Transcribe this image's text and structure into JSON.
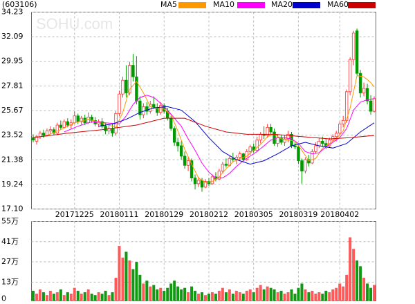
{
  "chart_data": {
    "type": "candlestick",
    "title": "(603106)",
    "watermark": "SOHU.com",
    "categories": [
      null,
      null,
      null,
      null,
      null,
      null,
      null,
      null,
      null,
      null,
      null,
      null,
      "20171225",
      null,
      null,
      null,
      null,
      null,
      null,
      null,
      null,
      null,
      null,
      null,
      null,
      "20180111",
      null,
      null,
      null,
      null,
      null,
      null,
      null,
      null,
      null,
      null,
      null,
      null,
      "20180129",
      null,
      null,
      null,
      null,
      null,
      null,
      null,
      null,
      null,
      null,
      null,
      null,
      "20180212",
      null,
      null,
      null,
      null,
      null,
      null,
      null,
      null,
      null,
      null,
      null,
      null,
      "20180305",
      null,
      null,
      null,
      null,
      null,
      null,
      null,
      null,
      null,
      null,
      null,
      null,
      "20180319",
      null,
      null,
      null,
      null,
      null,
      null,
      null,
      null,
      null,
      null,
      null,
      "20180402",
      null,
      null,
      null,
      null,
      null,
      null,
      null,
      null,
      null,
      null
    ],
    "ohlc": [
      [
        23.3,
        23.6,
        22.9,
        23.1
      ],
      [
        23.0,
        23.5,
        22.7,
        23.4
      ],
      [
        23.4,
        23.9,
        23.2,
        23.7
      ],
      [
        23.7,
        24.0,
        23.3,
        23.5
      ],
      [
        23.5,
        24.1,
        23.4,
        23.9
      ],
      [
        23.9,
        24.3,
        23.6,
        24.0
      ],
      [
        24.0,
        24.2,
        23.5,
        23.7
      ],
      [
        23.7,
        24.6,
        23.6,
        24.4
      ],
      [
        24.4,
        24.8,
        24.0,
        24.2
      ],
      [
        24.2,
        24.9,
        24.1,
        24.7
      ],
      [
        24.7,
        25.0,
        24.2,
        24.4
      ],
      [
        24.4,
        24.9,
        24.1,
        24.6
      ],
      [
        24.6,
        25.6,
        24.5,
        25.2
      ],
      [
        25.2,
        25.4,
        24.5,
        24.7
      ],
      [
        24.7,
        25.2,
        24.4,
        25.0
      ],
      [
        25.0,
        25.3,
        24.4,
        24.6
      ],
      [
        24.6,
        25.5,
        24.5,
        25.1
      ],
      [
        25.1,
        25.3,
        24.6,
        24.8
      ],
      [
        24.8,
        25.1,
        24.3,
        24.5
      ],
      [
        24.5,
        24.9,
        24.2,
        24.7
      ],
      [
        24.7,
        25.0,
        24.1,
        24.3
      ],
      [
        24.3,
        24.6,
        23.6,
        23.9
      ],
      [
        23.9,
        24.4,
        23.6,
        24.1
      ],
      [
        24.1,
        24.5,
        23.4,
        23.7
      ],
      [
        23.7,
        25.6,
        23.5,
        25.4
      ],
      [
        25.4,
        27.4,
        25.2,
        27.1
      ],
      [
        27.1,
        28.6,
        26.8,
        28.3
      ],
      [
        28.3,
        29.6,
        26.8,
        27.2
      ],
      [
        27.2,
        29.9,
        27.0,
        29.6
      ],
      [
        29.6,
        30.6,
        28.2,
        28.6
      ],
      [
        28.6,
        30.4,
        26.2,
        26.5
      ],
      [
        26.5,
        26.9,
        24.9,
        25.3
      ],
      [
        25.3,
        26.3,
        25.0,
        26.0
      ],
      [
        26.0,
        26.4,
        25.3,
        25.6
      ],
      [
        25.6,
        26.5,
        25.4,
        26.2
      ],
      [
        26.2,
        26.9,
        25.8,
        25.9
      ],
      [
        25.9,
        26.3,
        25.2,
        25.5
      ],
      [
        25.5,
        26.4,
        25.3,
        26.1
      ],
      [
        26.1,
        26.3,
        25.4,
        25.6
      ],
      [
        25.6,
        25.9,
        24.8,
        25.0
      ],
      [
        25.0,
        25.2,
        23.9,
        24.1
      ],
      [
        24.1,
        24.3,
        22.6,
        22.9
      ],
      [
        22.9,
        23.3,
        22.1,
        22.6
      ],
      [
        22.6,
        23.0,
        21.4,
        21.7
      ],
      [
        21.7,
        22.1,
        20.6,
        20.9
      ],
      [
        20.9,
        21.6,
        20.4,
        21.3
      ],
      [
        21.3,
        21.5,
        19.5,
        19.8
      ],
      [
        19.8,
        20.1,
        18.8,
        19.3
      ],
      [
        19.3,
        19.9,
        19.0,
        19.6
      ],
      [
        19.6,
        19.8,
        18.6,
        19.0
      ],
      [
        19.0,
        19.7,
        18.9,
        19.5
      ],
      [
        19.5,
        19.8,
        19.1,
        19.3
      ],
      [
        19.3,
        20.1,
        19.2,
        19.9
      ],
      [
        19.9,
        20.3,
        19.5,
        19.7
      ],
      [
        19.7,
        20.6,
        19.6,
        20.4
      ],
      [
        20.4,
        21.2,
        20.2,
        21.0
      ],
      [
        21.0,
        21.5,
        20.7,
        20.9
      ],
      [
        20.9,
        21.7,
        20.8,
        21.5
      ],
      [
        21.5,
        22.0,
        21.2,
        21.4
      ],
      [
        21.4,
        21.8,
        21.0,
        21.6
      ],
      [
        21.6,
        22.1,
        21.3,
        21.9
      ],
      [
        21.9,
        22.0,
        21.2,
        21.4
      ],
      [
        21.4,
        22.3,
        21.3,
        22.1
      ],
      [
        22.1,
        22.7,
        21.8,
        22.5
      ],
      [
        22.5,
        22.8,
        22.0,
        22.2
      ],
      [
        22.2,
        23.4,
        22.1,
        23.1
      ],
      [
        23.1,
        23.8,
        22.8,
        23.6
      ],
      [
        23.6,
        24.3,
        23.2,
        23.5
      ],
      [
        23.5,
        24.5,
        23.3,
        24.2
      ],
      [
        24.2,
        24.5,
        23.6,
        23.8
      ],
      [
        23.8,
        24.1,
        22.6,
        22.8
      ],
      [
        22.8,
        23.6,
        22.5,
        23.3
      ],
      [
        23.3,
        23.5,
        22.7,
        22.9
      ],
      [
        22.9,
        23.5,
        22.6,
        23.2
      ],
      [
        23.2,
        23.9,
        22.9,
        23.6
      ],
      [
        23.6,
        23.8,
        22.4,
        22.6
      ],
      [
        22.6,
        22.9,
        22.3,
        22.5
      ],
      [
        22.5,
        22.7,
        21.0,
        21.3
      ],
      [
        21.3,
        21.5,
        19.3,
        20.4
      ],
      [
        20.4,
        21.6,
        20.2,
        21.4
      ],
      [
        21.4,
        21.8,
        20.8,
        21.1
      ],
      [
        21.1,
        22.3,
        21.0,
        22.1
      ],
      [
        22.1,
        22.9,
        21.9,
        22.6
      ],
      [
        22.6,
        23.3,
        22.4,
        23.0
      ],
      [
        23.0,
        23.4,
        22.5,
        22.8
      ],
      [
        22.8,
        23.2,
        22.3,
        22.6
      ],
      [
        22.6,
        23.3,
        22.5,
        23.1
      ],
      [
        23.1,
        23.6,
        22.9,
        23.4
      ],
      [
        23.4,
        23.9,
        23.0,
        23.7
      ],
      [
        23.7,
        24.7,
        23.5,
        24.5
      ],
      [
        24.5,
        25.2,
        24.2,
        24.8
      ],
      [
        24.8,
        27.5,
        24.6,
        27.3
      ],
      [
        27.3,
        30.3,
        27.0,
        30.1
      ],
      [
        30.1,
        32.6,
        29.6,
        32.4
      ],
      [
        32.6,
        32.8,
        28.6,
        28.9
      ],
      [
        28.9,
        29.2,
        26.8,
        27.2
      ],
      [
        27.2,
        28.1,
        26.9,
        27.6
      ],
      [
        27.6,
        28.0,
        26.2,
        26.5
      ],
      [
        26.5,
        27.0,
        25.3,
        25.6
      ],
      [
        25.6,
        26.9,
        25.5,
        26.7
      ]
    ],
    "up_color": "#ff3333",
    "down_color": "#009900",
    "volumes": [
      7,
      5,
      8,
      6,
      4,
      7,
      5,
      6,
      8,
      4,
      6,
      5,
      9,
      7,
      5,
      6,
      8,
      5,
      4,
      6,
      5,
      7,
      4,
      6,
      16,
      38,
      30,
      34,
      28,
      22,
      27,
      18,
      12,
      14,
      10,
      11,
      8,
      9,
      7,
      9,
      12,
      14,
      10,
      8,
      9,
      6,
      10,
      7,
      5,
      6,
      4,
      5,
      6,
      5,
      7,
      9,
      6,
      8,
      5,
      7,
      6,
      5,
      7,
      8,
      6,
      9,
      11,
      8,
      10,
      9,
      8,
      6,
      7,
      5,
      6,
      8,
      5,
      9,
      12,
      8,
      6,
      7,
      5,
      6,
      5,
      7,
      6,
      8,
      9,
      12,
      10,
      18,
      44,
      36,
      28,
      24,
      16,
      12,
      9,
      11
    ],
    "ma": [
      {
        "name": "MA5",
        "color": "#ff9900",
        "x": [
          4,
          8,
          12,
          16,
          20,
          24,
          26,
          28,
          30,
          32,
          34,
          36,
          38,
          40,
          42,
          44,
          46,
          48,
          50,
          52,
          54,
          56,
          58,
          60,
          62,
          64,
          66,
          68,
          70,
          72,
          74,
          76,
          78,
          80,
          82,
          84,
          86,
          88,
          90,
          92,
          94,
          96,
          98,
          99
        ],
        "values": [
          23.5,
          24.0,
          24.6,
          24.9,
          24.6,
          24.2,
          25.5,
          27.5,
          28.2,
          27.2,
          26.0,
          25.8,
          25.8,
          25.3,
          23.9,
          22.3,
          21.0,
          19.8,
          19.4,
          19.5,
          19.9,
          20.6,
          21.2,
          21.5,
          21.7,
          22.2,
          22.7,
          23.4,
          23.6,
          23.2,
          23.1,
          23.0,
          22.2,
          21.3,
          21.5,
          22.4,
          22.8,
          23.2,
          23.9,
          25.9,
          28.7,
          28.6,
          28.1,
          27.7
        ]
      },
      {
        "name": "MA10",
        "color": "#ff00ff",
        "x": [
          9,
          13,
          17,
          21,
          25,
          27,
          29,
          31,
          33,
          35,
          37,
          39,
          41,
          43,
          45,
          47,
          49,
          51,
          53,
          55,
          57,
          59,
          61,
          63,
          65,
          67,
          69,
          71,
          73,
          75,
          77,
          79,
          81,
          83,
          85,
          87,
          89,
          91,
          93,
          95,
          97,
          99
        ],
        "values": [
          23.8,
          24.3,
          24.7,
          24.6,
          24.5,
          25.2,
          26.2,
          26.8,
          27.0,
          26.8,
          26.3,
          25.7,
          25.0,
          24.3,
          23.2,
          22.2,
          21.1,
          20.3,
          19.8,
          19.8,
          20.2,
          20.8,
          21.3,
          21.7,
          22.1,
          22.6,
          23.1,
          23.3,
          23.3,
          23.2,
          22.8,
          22.1,
          21.9,
          22.0,
          22.5,
          22.9,
          23.3,
          24.1,
          25.7,
          26.4,
          26.6,
          26.7
        ]
      },
      {
        "name": "MA20",
        "color": "#0000cc",
        "x": [
          19,
          23,
          27,
          31,
          35,
          39,
          43,
          47,
          51,
          55,
          59,
          63,
          67,
          71,
          75,
          79,
          83,
          87,
          91,
          95,
          99
        ],
        "values": [
          24.3,
          24.5,
          24.9,
          25.5,
          25.9,
          26.0,
          25.7,
          24.7,
          23.3,
          22.1,
          21.4,
          21.0,
          21.3,
          21.9,
          22.6,
          22.9,
          22.6,
          22.4,
          22.8,
          23.8,
          24.6
        ]
      },
      {
        "name": "MA60",
        "color": "#cc0000",
        "x": [
          0,
          10,
          20,
          30,
          38,
          44,
          50,
          56,
          62,
          70,
          78,
          86,
          92,
          99
        ],
        "values": [
          23.3,
          23.7,
          24.0,
          24.4,
          25.0,
          25.0,
          24.3,
          23.8,
          23.6,
          23.6,
          23.4,
          23.2,
          23.3,
          23.5
        ]
      }
    ],
    "ylim": [
      17.1,
      34.23
    ],
    "yticks": [
      {
        "value": 17.1,
        "label": "17.10"
      },
      19.24,
      21.38,
      23.52,
      25.67,
      27.81,
      29.95,
      32.09,
      34.23
    ],
    "volume_ylim": [
      0,
      55
    ],
    "volume_yticks": [
      0,
      {
        "value": 13,
        "label": "13万"
      },
      {
        "value": 27,
        "label": "27万"
      },
      {
        "value": 41,
        "label": "41万"
      },
      {
        "value": 55,
        "label": "55万"
      }
    ],
    "grid": true
  }
}
